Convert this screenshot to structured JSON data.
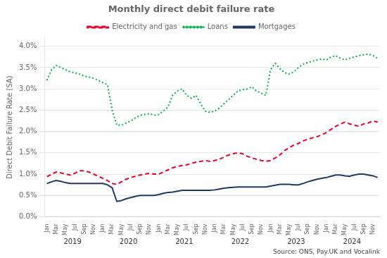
{
  "chart_data": {
    "type": "line",
    "title": "Monthly direct debit failure rate",
    "ylabel": "Direct Debit Failure Rate (SA)",
    "source": "Source: ONS, Pay.UK and Vocalink",
    "annotations": [
      "2019",
      "2020",
      "2021",
      "2022",
      "2023",
      "2024"
    ],
    "categories": [
      "Jan",
      null,
      "Mar",
      null,
      "May",
      null,
      "Jul",
      null,
      "Sep",
      null,
      "Nov",
      null,
      "Jan",
      null,
      "Mar",
      null,
      "May",
      null,
      "Jul",
      null,
      "Sep",
      null,
      "Nov",
      null,
      "Jan",
      null,
      "Mar",
      null,
      "May",
      null,
      "Jul",
      null,
      "Sep",
      null,
      "Nov",
      null,
      "Jan",
      null,
      "Mar",
      null,
      "May",
      null,
      "Jul",
      null,
      "Sep",
      null,
      "Nov",
      null,
      "Jan",
      null,
      "Mar",
      null,
      "May",
      null,
      "Jul",
      null,
      "Sep",
      null,
      "Nov",
      null,
      "Jan",
      null,
      "Mar",
      null,
      "May",
      null,
      "Jul",
      null,
      "Sep",
      null,
      "Nov",
      null
    ],
    "series": [
      {
        "name": "Electricity and gas",
        "color": "#e8002d",
        "line_style": "dashed",
        "values": [
          0.0094,
          0.01,
          0.0105,
          0.0103,
          0.01,
          0.0098,
          0.0102,
          0.0108,
          0.0108,
          0.0105,
          0.01,
          0.0095,
          0.009,
          0.0085,
          0.0078,
          0.0076,
          0.0082,
          0.0088,
          0.0092,
          0.0095,
          0.0098,
          0.01,
          0.0102,
          0.01,
          0.01,
          0.0105,
          0.011,
          0.0115,
          0.0118,
          0.012,
          0.0122,
          0.0125,
          0.0128,
          0.013,
          0.0132,
          0.013,
          0.0132,
          0.0135,
          0.014,
          0.0145,
          0.0148,
          0.015,
          0.0148,
          0.0142,
          0.0138,
          0.0135,
          0.0132,
          0.013,
          0.0132,
          0.0138,
          0.0145,
          0.0155,
          0.0162,
          0.0168,
          0.0172,
          0.0178,
          0.0182,
          0.0185,
          0.0188,
          0.0192,
          0.0198,
          0.0205,
          0.0212,
          0.0218,
          0.0222,
          0.0218,
          0.0215,
          0.0212,
          0.0218,
          0.022,
          0.0225,
          0.0222
        ]
      },
      {
        "name": "Loans",
        "color": "#00b050",
        "line_style": "dotted",
        "values": [
          0.032,
          0.0345,
          0.0355,
          0.035,
          0.0345,
          0.034,
          0.0338,
          0.0335,
          0.033,
          0.0328,
          0.0325,
          0.032,
          0.0315,
          0.031,
          0.025,
          0.0215,
          0.0215,
          0.022,
          0.0225,
          0.0232,
          0.0238,
          0.024,
          0.0242,
          0.0238,
          0.024,
          0.0248,
          0.0258,
          0.0285,
          0.0295,
          0.03,
          0.0285,
          0.0278,
          0.0285,
          0.0265,
          0.0248,
          0.0245,
          0.0248,
          0.0255,
          0.0265,
          0.0275,
          0.0285,
          0.0295,
          0.0298,
          0.03,
          0.0305,
          0.0295,
          0.029,
          0.0285,
          0.0345,
          0.036,
          0.0348,
          0.0338,
          0.0335,
          0.034,
          0.035,
          0.0358,
          0.0362,
          0.0365,
          0.0368,
          0.037,
          0.0368,
          0.0375,
          0.0378,
          0.0372,
          0.0368,
          0.0372,
          0.0375,
          0.0378,
          0.038,
          0.0382,
          0.0378,
          0.0372
        ]
      },
      {
        "name": "Mortgages",
        "color": "#1f3864",
        "line_style": "solid",
        "values": [
          0.0078,
          0.0082,
          0.0085,
          0.0083,
          0.008,
          0.0078,
          0.0078,
          0.0078,
          0.0078,
          0.0078,
          0.0078,
          0.0078,
          0.0078,
          0.0075,
          0.0068,
          0.0036,
          0.0038,
          0.0042,
          0.0045,
          0.0048,
          0.005,
          0.005,
          0.005,
          0.005,
          0.0052,
          0.0055,
          0.0057,
          0.0058,
          0.006,
          0.0062,
          0.0062,
          0.0062,
          0.0062,
          0.0062,
          0.0062,
          0.0062,
          0.0063,
          0.0065,
          0.0067,
          0.0068,
          0.0069,
          0.007,
          0.007,
          0.007,
          0.007,
          0.007,
          0.007,
          0.007,
          0.0072,
          0.0074,
          0.0076,
          0.0076,
          0.0076,
          0.0075,
          0.0075,
          0.0078,
          0.0082,
          0.0085,
          0.0088,
          0.009,
          0.0092,
          0.0095,
          0.0098,
          0.0098,
          0.0096,
          0.0095,
          0.0098,
          0.01,
          0.01,
          0.0098,
          0.0096,
          0.0092
        ]
      }
    ],
    "ylim": [
      0.0,
      0.042
    ],
    "yticks": [
      {
        "value": 0.0,
        "label": "0.0%"
      },
      {
        "value": 0.005,
        "label": "0.5%"
      },
      {
        "value": 0.01,
        "label": "1.0%"
      },
      {
        "value": 0.015,
        "label": "1.5%"
      },
      {
        "value": 0.02,
        "label": "2.0%"
      },
      {
        "value": 0.025,
        "label": "2.5%"
      },
      {
        "value": 0.03,
        "label": "3.0%"
      },
      {
        "value": 0.035,
        "label": "3.5%"
      },
      {
        "value": 0.04,
        "label": "4.0%"
      }
    ],
    "grid": true,
    "legend": "top"
  }
}
